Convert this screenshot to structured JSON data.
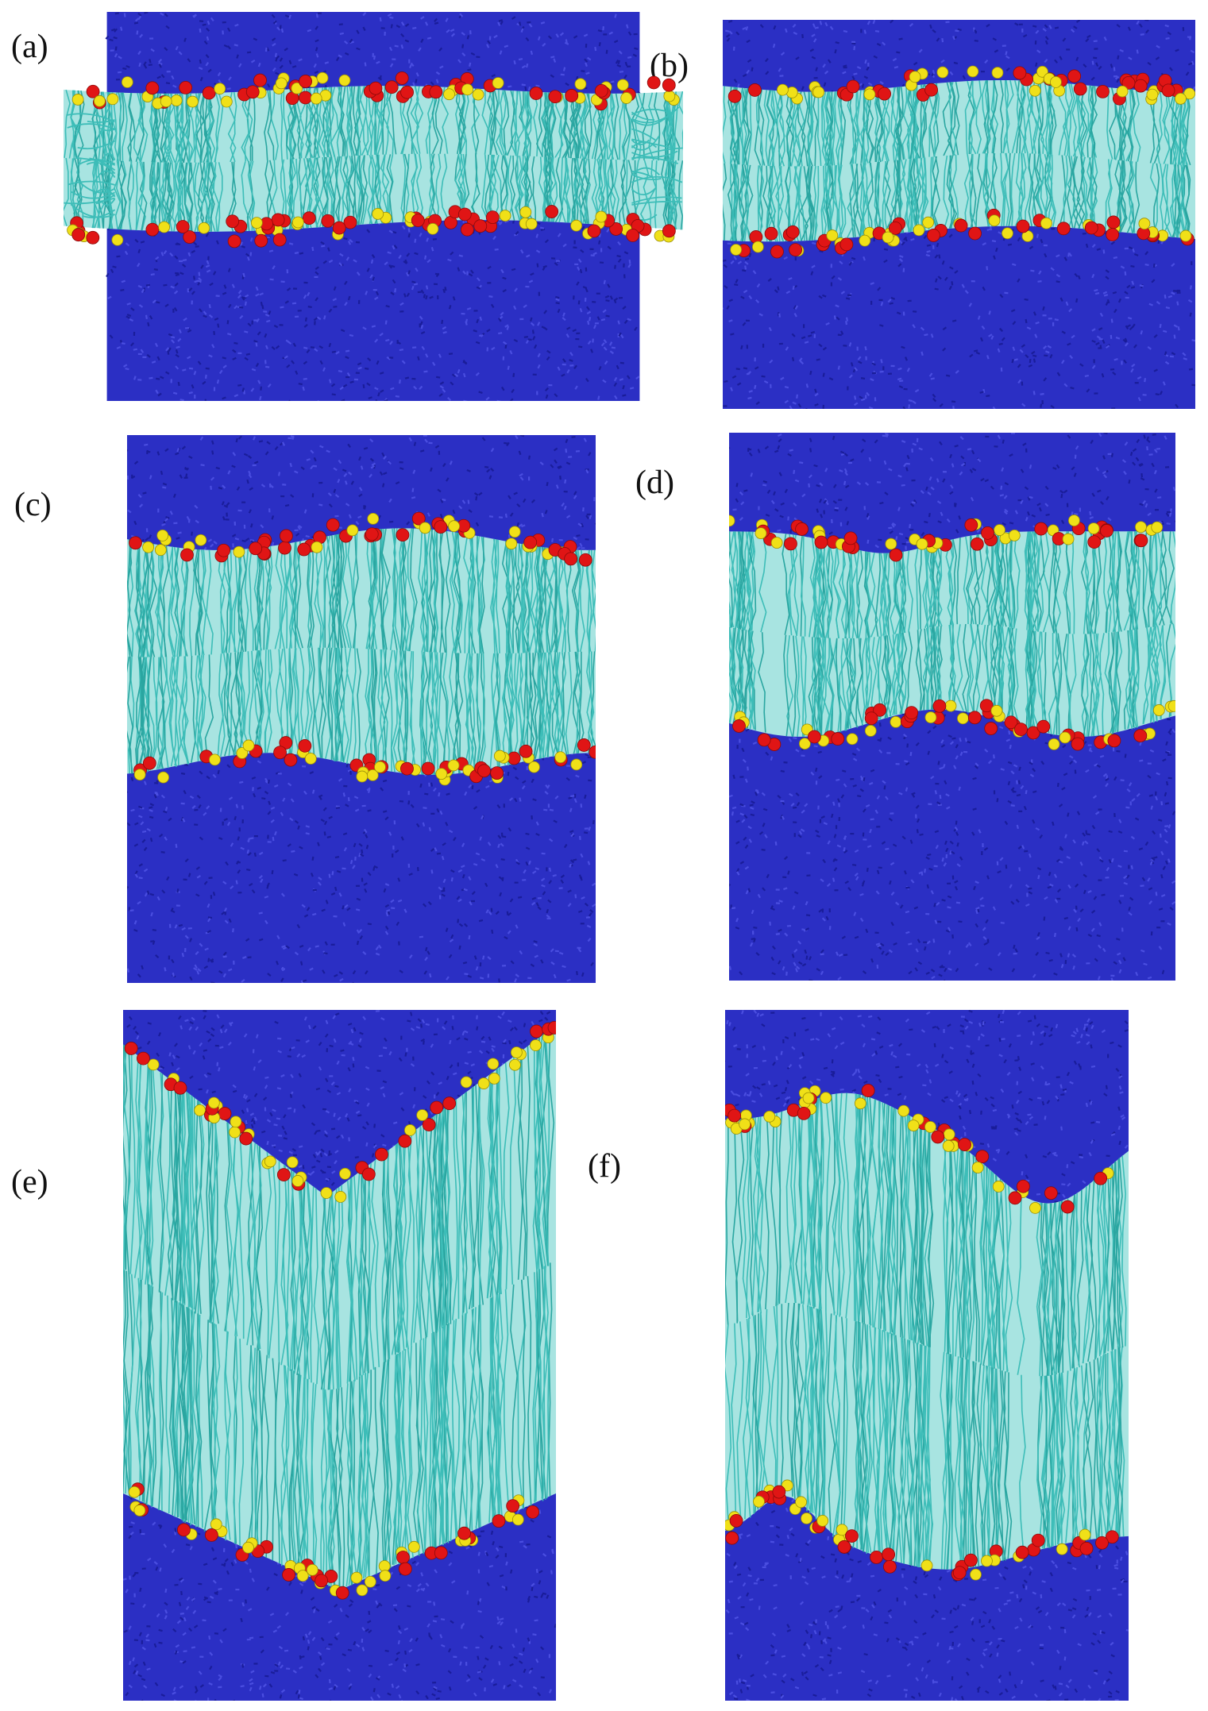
{
  "figure": {
    "panels": [
      {
        "id": "a",
        "label": "(a)",
        "morphology": "flat bilayer with lipid tails splaying at edges"
      },
      {
        "id": "b",
        "label": "(b)",
        "morphology": "flat bilayer"
      },
      {
        "id": "c",
        "label": "(c)",
        "morphology": "undulating bilayer"
      },
      {
        "id": "d",
        "label": "(d)",
        "morphology": "undulating bilayer, diffuse water top"
      },
      {
        "id": "e",
        "label": "(e)",
        "morphology": "V-shaped buckled bilayer"
      },
      {
        "id": "f",
        "label": "(f)",
        "morphology": "asymmetric buckled bilayer"
      }
    ]
  },
  "colors": {
    "water": "#2b2fc4",
    "water_light": "#4a4ee0",
    "lipid_tails": "#3dbdb8",
    "headgroup_phosphate": "#e01515",
    "headgroup_choline": "#f0e018",
    "background": "#ffffff"
  },
  "icons": {
    "headgroup_red": "red-sphere",
    "headgroup_yellow": "yellow-sphere"
  }
}
